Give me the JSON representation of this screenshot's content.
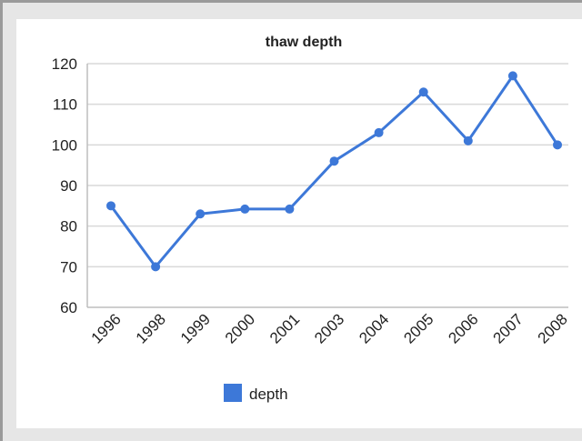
{
  "chart_data": {
    "type": "line",
    "title": "thaw depth",
    "xlabel": "",
    "ylabel": "",
    "categories": [
      "1996",
      "1998",
      "1999",
      "2000",
      "2001",
      "2003",
      "2004",
      "2005",
      "2006",
      "2007",
      "2008"
    ],
    "series": [
      {
        "name": "depth",
        "values": [
          85,
          70,
          83,
          84.2,
          84.2,
          96,
          103,
          113,
          101,
          117,
          100
        ],
        "color": "#3d78d8"
      }
    ],
    "ylim": [
      60,
      120
    ],
    "yticks": [
      60,
      70,
      80,
      90,
      100,
      110,
      120
    ],
    "grid": true,
    "legend": "bottom-left"
  }
}
